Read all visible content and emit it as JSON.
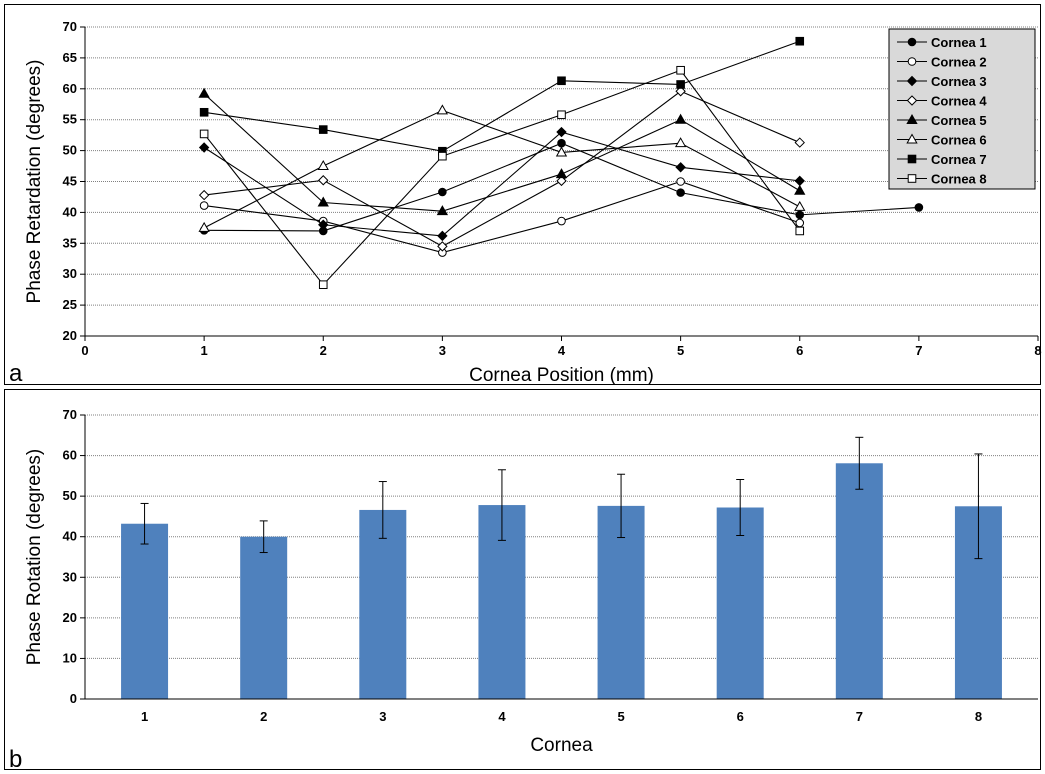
{
  "chart_data": [
    {
      "type": "line",
      "panel_label": "a",
      "xlabel": "Cornea Position (mm)",
      "ylabel": "Phase Retardation (degrees)",
      "xlim": [
        0,
        8
      ],
      "ylim": [
        20,
        70
      ],
      "x_ticks": [
        0,
        1,
        2,
        3,
        4,
        5,
        6,
        7,
        8
      ],
      "y_ticks": [
        20,
        25,
        30,
        35,
        40,
        45,
        50,
        55,
        60,
        65,
        70
      ],
      "grid": "horizontal",
      "legend_position": "top-right",
      "series": [
        {
          "name": "Cornea 1",
          "marker": "circle-filled",
          "x": [
            1,
            2,
            3,
            4,
            5,
            6,
            7
          ],
          "values": [
            37.1,
            37.0,
            43.3,
            51.2,
            43.2,
            39.6,
            40.8
          ]
        },
        {
          "name": "Cornea 2",
          "marker": "circle-open",
          "x": [
            1,
            2,
            3,
            4,
            5,
            6
          ],
          "values": [
            41.1,
            38.6,
            33.5,
            38.6,
            45.0,
            38.3
          ]
        },
        {
          "name": "Cornea 3",
          "marker": "diamond-filled",
          "x": [
            1,
            2,
            3,
            4,
            5,
            6
          ],
          "values": [
            50.5,
            38.0,
            36.2,
            53.0,
            47.3,
            45.1
          ]
        },
        {
          "name": "Cornea 4",
          "marker": "diamond-open",
          "x": [
            1,
            2,
            3,
            4,
            5,
            6
          ],
          "values": [
            42.8,
            45.2,
            34.5,
            45.1,
            59.6,
            51.3
          ]
        },
        {
          "name": "Cornea 5",
          "marker": "triangle-filled",
          "x": [
            1,
            2,
            3,
            4,
            5,
            6
          ],
          "values": [
            59.2,
            41.6,
            40.2,
            46.2,
            55.0,
            43.5
          ]
        },
        {
          "name": "Cornea 6",
          "marker": "triangle-open",
          "x": [
            1,
            2,
            3,
            4,
            5,
            6
          ],
          "values": [
            37.5,
            47.5,
            56.5,
            49.7,
            51.2,
            40.9
          ]
        },
        {
          "name": "Cornea 7",
          "marker": "square-filled",
          "x": [
            1,
            2,
            3,
            4,
            5,
            6
          ],
          "values": [
            56.2,
            53.4,
            49.9,
            61.3,
            60.7,
            67.7
          ]
        },
        {
          "name": "Cornea 8",
          "marker": "square-open",
          "x": [
            1,
            2,
            3,
            4,
            5,
            6
          ],
          "values": [
            52.7,
            28.3,
            49.1,
            55.8,
            63.0,
            37.0
          ]
        }
      ],
      "colors": {
        "line": "#000000",
        "grid": "#808080",
        "legend_bg": "#d9d9d9"
      }
    },
    {
      "type": "bar",
      "panel_label": "b",
      "xlabel": "Cornea",
      "ylabel": "Phase Rotation (degrees)",
      "ylim": [
        0,
        70
      ],
      "y_ticks": [
        0,
        10,
        20,
        30,
        40,
        50,
        60,
        70
      ],
      "grid": "horizontal",
      "categories": [
        "1",
        "2",
        "3",
        "4",
        "5",
        "6",
        "7",
        "8"
      ],
      "values": [
        43.2,
        40.0,
        46.6,
        47.8,
        47.6,
        47.2,
        58.1,
        47.5
      ],
      "error": [
        5.0,
        3.9,
        7.0,
        8.7,
        7.8,
        6.9,
        6.4,
        12.9
      ],
      "colors": {
        "bar": "#4f81bd",
        "grid": "#808080"
      }
    }
  ]
}
